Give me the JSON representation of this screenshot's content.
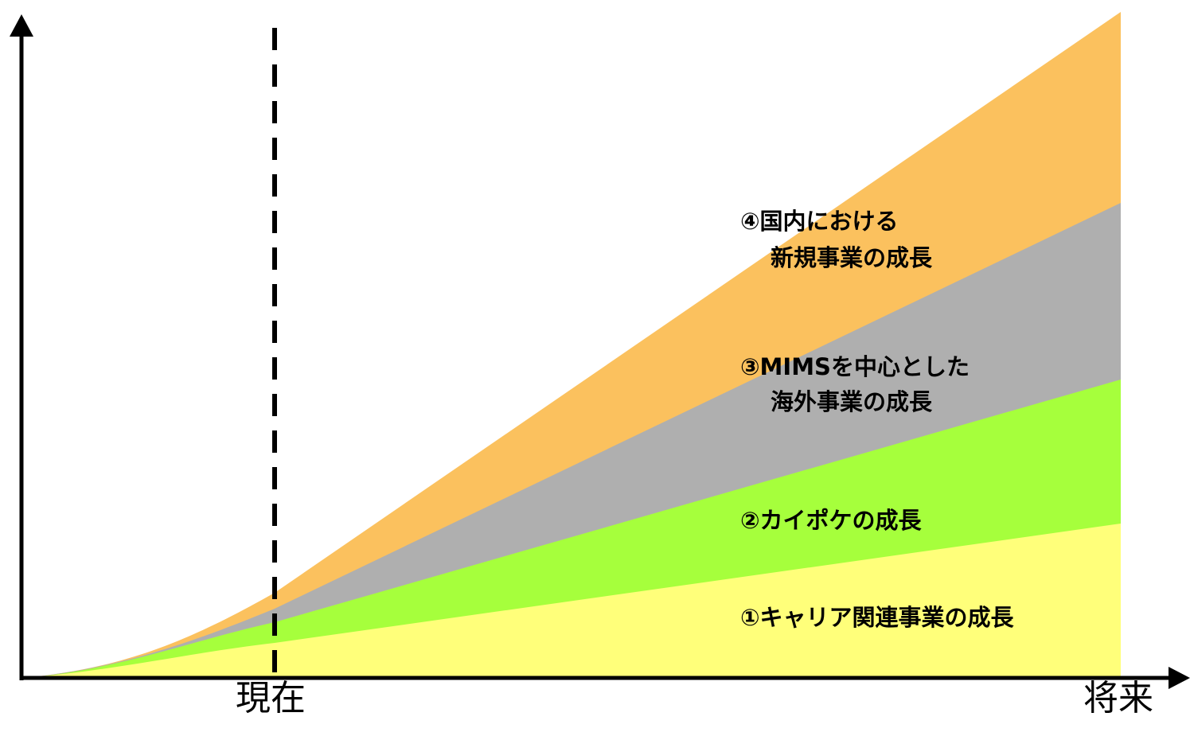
{
  "x_axis": {
    "now_label": "現在",
    "future_label": "将来"
  },
  "bands": [
    {
      "lines": [
        "①キャリア関連事業の成長"
      ]
    },
    {
      "lines": [
        "②カイポケの成長"
      ]
    },
    {
      "lines": [
        "③MIMSを中心とした",
        "海外事業の成長"
      ]
    },
    {
      "lines": [
        "④国内における",
        "新規事業の成長"
      ]
    }
  ]
}
